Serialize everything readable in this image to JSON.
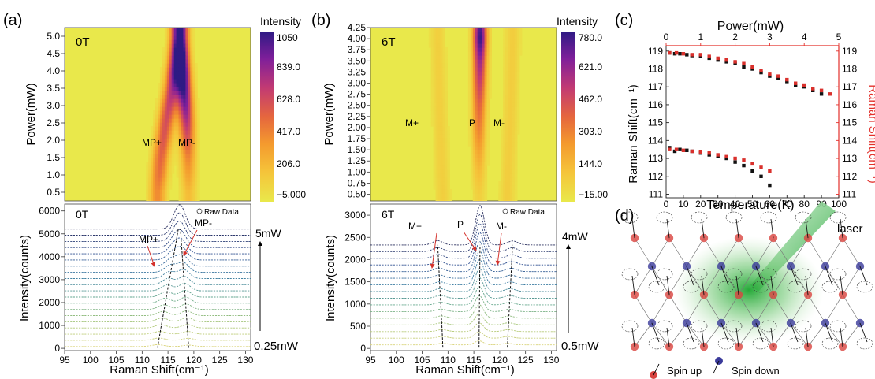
{
  "panels": {
    "a": {
      "label": "(a)",
      "heat_title": "0T",
      "heat_ylabel": "Power(mW)",
      "heat_yticks": [
        "5.0",
        "4.5",
        "4.0",
        "3.5",
        "3.0",
        "2.5",
        "2.0",
        "1.5",
        "1.0",
        "0.5"
      ],
      "colorbar_title": "Intensity",
      "colorbar_ticks": [
        "1050",
        "839.0",
        "628.0",
        "417.0",
        "206.0",
        "−5.000"
      ],
      "peak_labels": [
        "MP+",
        "MP-"
      ],
      "spec_title": "0T",
      "spec_ylabel": "Intensity(counts)",
      "spec_yticks": [
        "6000",
        "5000",
        "4000",
        "3000",
        "2000",
        "1000",
        "0"
      ],
      "spec_xticks": [
        "95",
        "100",
        "105",
        "110",
        "115",
        "120",
        "125",
        "130"
      ],
      "xlabel": "Raman Shift(cm⁻¹)",
      "legend": "Raw Data",
      "power_top": "5mW",
      "power_bottom": "0.25mW"
    },
    "b": {
      "label": "(b)",
      "heat_title": "6T",
      "heat_ylabel": "Power(mW)",
      "heat_yticks": [
        "4.25",
        "4.00",
        "3.75",
        "3.50",
        "3.25",
        "3.00",
        "2.75",
        "2.50",
        "2.25",
        "2.00",
        "1.75",
        "1.50",
        "1.25",
        "1.00",
        "0.75",
        "0.50"
      ],
      "colorbar_title": "Intensity",
      "colorbar_ticks": [
        "780.0",
        "621.0",
        "462.0",
        "303.0",
        "144.0",
        "−15.00"
      ],
      "peak_labels": [
        "M+",
        "P",
        "M-"
      ],
      "spec_title": "6T",
      "spec_ylabel": "Intensity(counts)",
      "spec_yticks": [
        "3000",
        "2500",
        "2000",
        "1500",
        "1000",
        "500",
        "0"
      ],
      "spec_xticks": [
        "95",
        "100",
        "105",
        "110",
        "115",
        "120",
        "125",
        "130"
      ],
      "xlabel": "Raman Shift(cm⁻¹)",
      "legend": "Raw Data",
      "power_top": "4mW",
      "power_bottom": "0.5mW"
    },
    "c": {
      "label": "(c)",
      "top_axis_label": "Power(mW)",
      "top_ticks": [
        "0",
        "1",
        "2",
        "3",
        "4",
        "5"
      ],
      "bottom_axis_label": "Temperature(K)",
      "bottom_ticks": [
        "0",
        "10",
        "20",
        "30",
        "40",
        "50",
        "60",
        "70",
        "80",
        "90",
        "100"
      ],
      "left_axis_label": "Raman Shift(cm⁻¹)",
      "right_axis_label": "Raman Shift(cm⁻¹)",
      "y_ticks": [
        "119",
        "118",
        "117",
        "116",
        "115",
        "114",
        "113",
        "112",
        "111"
      ]
    },
    "d": {
      "label": "(d)",
      "laser_label": "laser",
      "spin_up": "Spin up",
      "spin_down": "Spin down",
      "colors": {
        "up": "#d9433f",
        "down": "#3a3a9a",
        "beam": "#3cb44a"
      }
    }
  },
  "chart_data": [
    {
      "type": "heatmap",
      "title": "0T",
      "xlabel": "Raman Shift(cm⁻¹)",
      "ylabel": "Power(mW)",
      "xlim": [
        95,
        131
      ],
      "ylim": [
        0.25,
        5.25
      ],
      "zlim": [
        -5,
        1050
      ],
      "colorscale": [
        "#e9e84b",
        "#f5c53a",
        "#f49a2e",
        "#e5663e",
        "#c23a73",
        "#7f1f9a",
        "#2e1a84"
      ],
      "ridges": [
        {
          "name": "MP+",
          "power": [
            0.5,
            1.5,
            2.5,
            3.5,
            4.5,
            5.0
          ],
          "shift": [
            113.0,
            113.6,
            114.6,
            115.8,
            116.7,
            117.0
          ]
        },
        {
          "name": "MP-",
          "power": [
            0.5,
            1.5,
            2.5,
            3.5,
            4.5,
            5.0
          ],
          "shift": [
            119.0,
            118.9,
            118.6,
            118.1,
            117.6,
            117.4
          ]
        }
      ],
      "z_scale": [
        [
          0.5,
          0.12
        ],
        [
          1.0,
          0.25
        ],
        [
          1.5,
          0.38
        ],
        [
          2.0,
          0.5
        ],
        [
          2.5,
          0.62
        ],
        [
          3.0,
          0.75
        ],
        [
          3.5,
          0.88
        ],
        [
          4.0,
          1.0
        ],
        [
          4.5,
          0.85
        ],
        [
          5.0,
          0.65
        ]
      ]
    },
    {
      "type": "heatmap",
      "title": "6T",
      "xlabel": "Raman Shift(cm⁻¹)",
      "ylabel": "Power(mW)",
      "xlim": [
        95,
        131
      ],
      "ylim": [
        0.35,
        4.25
      ],
      "zlim": [
        -15,
        780
      ],
      "colorscale": [
        "#e9e84b",
        "#f5c53a",
        "#f49a2e",
        "#e5663e",
        "#c23a73",
        "#7f1f9a",
        "#2e1a84"
      ],
      "ridges": [
        {
          "name": "M+",
          "power": [
            0.5,
            2.0,
            4.0
          ],
          "shift": [
            109.0,
            108.5,
            108.0
          ]
        },
        {
          "name": "P",
          "power": [
            0.5,
            2.0,
            3.0,
            4.0,
            4.25
          ],
          "shift": [
            116.0,
            116.0,
            116.1,
            116.2,
            116.2
          ]
        },
        {
          "name": "M-",
          "power": [
            0.5,
            2.0,
            4.0
          ],
          "shift": [
            121.5,
            122.0,
            122.5
          ]
        }
      ],
      "z_scale": [
        [
          0.5,
          0.12
        ],
        [
          1.0,
          0.2
        ],
        [
          1.5,
          0.3
        ],
        [
          2.0,
          0.42
        ],
        [
          2.5,
          0.52
        ],
        [
          3.0,
          0.65
        ],
        [
          3.5,
          0.78
        ],
        [
          4.0,
          1.0
        ],
        [
          4.25,
          0.95
        ]
      ]
    },
    {
      "type": "line",
      "title": "0T",
      "xlabel": "Raman Shift(cm⁻¹)",
      "ylabel": "Intensity(counts)",
      "xlim": [
        95,
        131
      ],
      "ylim": [
        -100,
        6300
      ],
      "n_traces": 20,
      "offset": 270,
      "peaks": [
        {
          "name": "MP+",
          "shift_low": 113.0,
          "shift_high": 117.0
        },
        {
          "name": "MP-",
          "shift_low": 119.0,
          "shift_high": 117.4
        }
      ],
      "legend": [
        "Raw Data"
      ]
    },
    {
      "type": "line",
      "title": "6T",
      "xlabel": "Raman Shift(cm⁻¹)",
      "ylabel": "Intensity(counts)",
      "xlim": [
        95,
        131
      ],
      "ylim": [
        -50,
        3250
      ],
      "n_traces": 16,
      "offset": 150,
      "peaks": [
        {
          "name": "M+",
          "shift_low": 109.0,
          "shift_high": 108.0
        },
        {
          "name": "P",
          "shift_low": 116.0,
          "shift_high": 116.2
        },
        {
          "name": "M-",
          "shift_low": 121.5,
          "shift_high": 122.5
        }
      ],
      "legend": [
        "Raw Data"
      ]
    },
    {
      "type": "scatter",
      "xlabel": "Temperature(K)",
      "x2label": "Power(mW)",
      "ylabel": "Raman Shift(cm⁻¹)",
      "xlim": [
        0,
        100
      ],
      "x2lim": [
        0,
        5
      ],
      "ylim": [
        110.8,
        119.3
      ],
      "series": [
        {
          "color": "#111111",
          "axis": "temperature",
          "x": [
            2,
            5,
            8,
            12,
            15,
            20,
            25,
            30,
            35,
            40,
            45,
            50,
            55,
            60,
            65,
            70,
            75,
            80,
            85,
            90
          ],
          "y": [
            118.9,
            118.85,
            118.85,
            118.8,
            118.75,
            118.7,
            118.6,
            118.5,
            118.4,
            118.3,
            118.1,
            118.0,
            117.8,
            117.6,
            117.5,
            117.3,
            117.1,
            117.0,
            116.8,
            116.6
          ]
        },
        {
          "color": "#d9302c",
          "axis": "power",
          "x": [
            0.1,
            0.3,
            0.5,
            0.75,
            1.0,
            1.25,
            1.5,
            1.75,
            2.0,
            2.25,
            2.5,
            2.75,
            3.0,
            3.25,
            3.5,
            3.75,
            4.0,
            4.25,
            4.5,
            4.75
          ],
          "y": [
            118.9,
            118.9,
            118.85,
            118.8,
            118.8,
            118.7,
            118.6,
            118.5,
            118.4,
            118.3,
            118.1,
            117.9,
            117.7,
            117.6,
            117.4,
            117.2,
            117.1,
            116.9,
            116.8,
            116.6
          ]
        },
        {
          "color": "#111111",
          "axis": "temperature",
          "x": [
            2,
            5,
            8,
            12,
            15,
            20,
            25,
            30,
            35,
            40,
            45,
            50,
            55,
            60
          ],
          "y": [
            113.6,
            113.4,
            113.5,
            113.45,
            113.4,
            113.3,
            113.2,
            113.1,
            113.0,
            112.8,
            112.6,
            112.3,
            112.0,
            111.5
          ]
        },
        {
          "color": "#d9302c",
          "axis": "power",
          "x": [
            0.1,
            0.3,
            0.5,
            0.75,
            1.0,
            1.25,
            1.5,
            1.75,
            2.0,
            2.25,
            2.5,
            2.75,
            3.0
          ],
          "y": [
            113.5,
            113.5,
            113.45,
            113.4,
            113.35,
            113.3,
            113.2,
            113.1,
            113.0,
            112.9,
            112.7,
            112.5,
            112.3
          ]
        }
      ]
    }
  ]
}
